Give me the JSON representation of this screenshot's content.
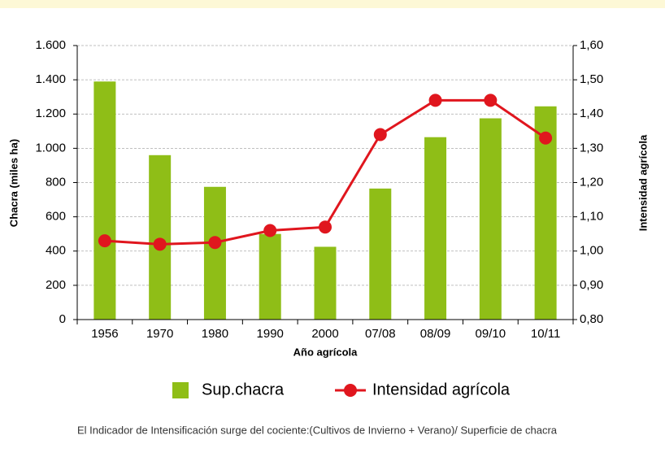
{
  "chart_data": {
    "type": "bar_line",
    "categories": [
      "1956",
      "1970",
      "1980",
      "1990",
      "2000",
      "07/08",
      "08/09",
      "09/10",
      "10/11"
    ],
    "series": [
      {
        "name": "Sup.chacra",
        "type": "bar",
        "color": "#8fbe17",
        "values": [
          1390,
          960,
          775,
          500,
          425,
          765,
          1065,
          1175,
          1245
        ]
      },
      {
        "name": "Intensidad agrícola",
        "type": "line",
        "axis": "y2",
        "color": "#e0161e",
        "values": [
          1.03,
          1.02,
          1.025,
          1.06,
          1.07,
          1.34,
          1.44,
          1.44,
          1.33
        ]
      }
    ],
    "xlabel": "Año agrícola",
    "ylabel": "Chacra (miles ha)",
    "y2label": "Intensidad agrícola",
    "ylim": [
      0,
      1600
    ],
    "yticks": [
      0,
      200,
      400,
      600,
      800,
      {
        "value": 1000,
        "label": "1.000"
      },
      {
        "value": 1200,
        "label": "1.200"
      },
      {
        "value": 1400,
        "label": "1.400"
      },
      {
        "value": 1600,
        "label": "1.600"
      }
    ],
    "y2lim": [
      0.8,
      1.6
    ],
    "y2ticks": [
      {
        "value": 0.8,
        "label": "0,80"
      },
      {
        "value": 0.9,
        "label": "0,90"
      },
      {
        "value": 1.0,
        "label": "1,00"
      },
      {
        "value": 1.1,
        "label": "1,10"
      },
      {
        "value": 1.2,
        "label": "1,20"
      },
      {
        "value": 1.3,
        "label": "1,30"
      },
      {
        "value": 1.4,
        "label": "1,40"
      },
      {
        "value": 1.5,
        "label": "1,50"
      },
      {
        "value": 1.6,
        "label": "1,60"
      }
    ],
    "grid": true,
    "legend": "bottom",
    "footnote": "El Indicador de Intensificación surge del cociente:(Cultivos de Invierno + Verano)/ Superficie de chacra"
  }
}
